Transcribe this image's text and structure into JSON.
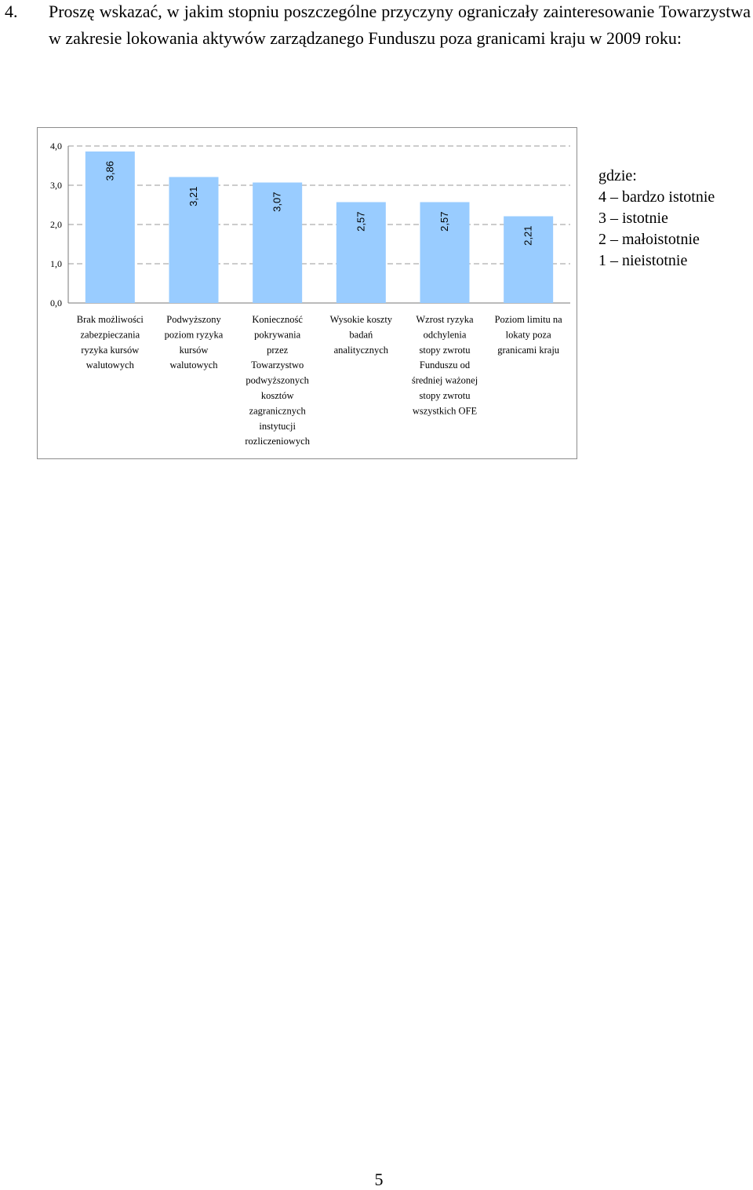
{
  "question": {
    "number": "4.",
    "text": "Proszę wskazać, w jakim stopniu poszczególne przyczyny ograniczały zainteresowanie Towarzystwa w zakresie lokowania aktywów zarządzanego Funduszu poza granicami kraju w 2009 roku:"
  },
  "chart_data": {
    "type": "bar",
    "title": "",
    "xlabel": "",
    "ylabel": "",
    "ylim": [
      0,
      4
    ],
    "yticks": [
      "0,0",
      "1,0",
      "2,0",
      "3,0",
      "4,0"
    ],
    "grid": true,
    "bar_color": "#99ccff",
    "categories": [
      [
        "Brak możliwości",
        "zabezpieczania",
        "ryzyka kursów",
        "walutowych"
      ],
      [
        "Podwyższony",
        "poziom ryzyka",
        "kursów",
        "walutowych"
      ],
      [
        "Konieczność",
        "pokrywania",
        "przez",
        "Towarzystwo",
        "podwyższonych",
        "kosztów",
        "zagranicznych",
        "instytucji",
        "rozliczeniowych"
      ],
      [
        "Wysokie koszty",
        "badań",
        "analitycznych"
      ],
      [
        "Wzrost ryzyka",
        "odchylenia",
        "stopy zwrotu",
        "Funduszu od",
        "średniej ważonej",
        "stopy zwrotu",
        "wszystkich OFE"
      ],
      [
        "Poziom limitu na",
        "lokaty poza",
        "granicami kraju"
      ]
    ],
    "values": [
      3.86,
      3.21,
      3.07,
      2.57,
      2.57,
      2.21
    ],
    "data_labels": [
      "3,86",
      "3,21",
      "3,07",
      "2,57",
      "2,57",
      "2,21"
    ]
  },
  "legend": {
    "title": "gdzie:",
    "items": [
      "4 – bardzo istotnie",
      "3 – istotnie",
      "2 – małoistotnie",
      "1 – nieistotnie"
    ]
  },
  "page": {
    "number": "5"
  }
}
